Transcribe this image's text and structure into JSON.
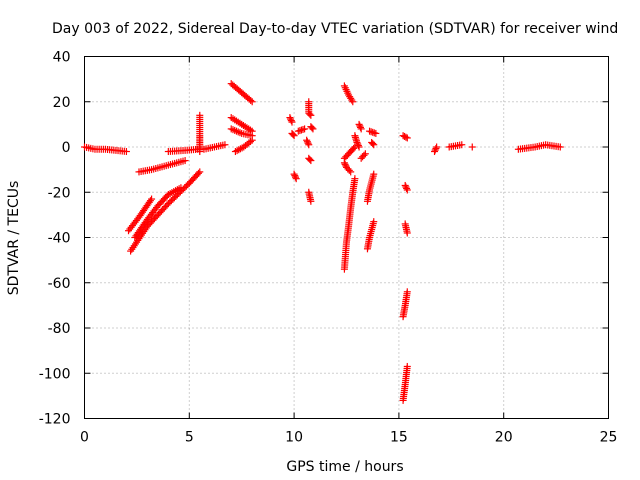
{
  "colors": {
    "points": "#ff0000",
    "background": "#ffffff",
    "frame": "#000000",
    "grid": "#a0a0a0"
  },
  "chart_data": {
    "type": "scatter",
    "title": "Day 003 of 2022, Sidereal Day-to-day VTEC variation (SDTVAR) for receiver wind",
    "xlabel": "GPS time / hours",
    "ylabel": "SDTVAR / TECUs",
    "xlim": [
      0,
      25
    ],
    "ylim": [
      -120,
      40
    ],
    "xticks": [
      0,
      5,
      10,
      15,
      20,
      25
    ],
    "yticks": [
      -120,
      -100,
      -80,
      -60,
      -40,
      -20,
      0,
      20,
      40
    ],
    "grid": true,
    "marker": "plus",
    "series": [
      {
        "name": "SDTVAR",
        "segments": [
          [
            [
              0.0,
              0
            ],
            [
              0.5,
              -1
            ],
            [
              1.0,
              -1
            ],
            [
              1.5,
              -1.5
            ],
            [
              2.0,
              -2
            ]
          ],
          [
            [
              2.6,
              -11
            ],
            [
              3.2,
              -10
            ],
            [
              4.0,
              -8
            ],
            [
              4.8,
              -6
            ]
          ],
          [
            [
              2.1,
              -37
            ],
            [
              2.6,
              -31
            ],
            [
              3.2,
              -23
            ]
          ],
          [
            [
              2.2,
              -46
            ],
            [
              3.0,
              -35
            ],
            [
              4.0,
              -25
            ],
            [
              5.0,
              -16
            ],
            [
              5.5,
              -11
            ]
          ],
          [
            [
              2.4,
              -40
            ],
            [
              3.0,
              -32
            ],
            [
              3.5,
              -26
            ],
            [
              4.0,
              -21
            ],
            [
              4.6,
              -18
            ]
          ],
          [
            [
              4.0,
              -2
            ],
            [
              4.8,
              -1.5
            ],
            [
              5.4,
              -1
            ]
          ],
          [
            [
              5.5,
              14
            ],
            [
              5.5,
              5
            ],
            [
              5.5,
              2
            ],
            [
              5.5,
              -2
            ]
          ],
          [
            [
              5.7,
              -1
            ],
            [
              6.2,
              0
            ],
            [
              6.7,
              1
            ]
          ],
          [
            [
              7.0,
              28
            ],
            [
              7.5,
              24
            ],
            [
              8.0,
              20
            ]
          ],
          [
            [
              7.0,
              13
            ],
            [
              7.5,
              10
            ],
            [
              8.0,
              7
            ]
          ],
          [
            [
              7.0,
              8
            ],
            [
              7.5,
              6
            ],
            [
              8.0,
              5
            ]
          ],
          [
            [
              7.2,
              -2
            ],
            [
              7.6,
              0
            ],
            [
              8.0,
              3
            ]
          ],
          [
            [
              9.8,
              13
            ],
            [
              9.9,
              11
            ]
          ],
          [
            [
              9.9,
              6
            ],
            [
              10.0,
              5
            ]
          ],
          [
            [
              10.0,
              -12
            ],
            [
              10.1,
              -14
            ]
          ],
          [
            [
              10.2,
              7
            ],
            [
              10.5,
              8
            ]
          ],
          [
            [
              10.7,
              20
            ],
            [
              10.7,
              15
            ],
            [
              10.8,
              14
            ]
          ],
          [
            [
              10.8,
              9
            ],
            [
              10.9,
              8
            ]
          ],
          [
            [
              10.6,
              3
            ],
            [
              10.7,
              1
            ]
          ],
          [
            [
              10.7,
              -5
            ],
            [
              10.8,
              -6
            ]
          ],
          [
            [
              10.7,
              -20
            ],
            [
              10.8,
              -24
            ]
          ],
          [
            [
              12.4,
              27
            ],
            [
              12.6,
              23
            ],
            [
              12.8,
              20
            ]
          ],
          [
            [
              12.4,
              -5
            ],
            [
              12.6,
              -3
            ],
            [
              12.9,
              0
            ]
          ],
          [
            [
              12.4,
              -7
            ],
            [
              12.5,
              -9
            ],
            [
              12.7,
              -11
            ]
          ],
          [
            [
              12.4,
              -54
            ],
            [
              12.5,
              -42
            ],
            [
              12.6,
              -35
            ],
            [
              12.7,
              -27
            ],
            [
              12.8,
              -20
            ],
            [
              12.9,
              -14
            ]
          ],
          [
            [
              12.9,
              5
            ],
            [
              13.0,
              2
            ],
            [
              13.1,
              0
            ]
          ],
          [
            [
              13.1,
              10
            ],
            [
              13.2,
              8
            ]
          ],
          [
            [
              13.2,
              -5
            ],
            [
              13.4,
              -3
            ]
          ],
          [
            [
              13.5,
              -24
            ],
            [
              13.6,
              -19
            ],
            [
              13.8,
              -12
            ]
          ],
          [
            [
              13.5,
              -45
            ],
            [
              13.6,
              -40
            ],
            [
              13.8,
              -33
            ]
          ],
          [
            [
              13.6,
              7
            ],
            [
              13.9,
              6
            ]
          ],
          [
            [
              13.7,
              2
            ],
            [
              13.8,
              1
            ]
          ],
          [
            [
              15.2,
              5
            ],
            [
              15.4,
              4
            ]
          ],
          [
            [
              15.3,
              -17
            ],
            [
              15.4,
              -19
            ]
          ],
          [
            [
              15.3,
              -34
            ],
            [
              15.4,
              -38
            ]
          ],
          [
            [
              15.2,
              -75
            ],
            [
              15.3,
              -70
            ],
            [
              15.4,
              -64
            ]
          ],
          [
            [
              15.2,
              -112
            ],
            [
              15.3,
              -105
            ],
            [
              15.4,
              -97
            ]
          ],
          [
            [
              16.7,
              -2
            ],
            [
              16.8,
              0
            ]
          ],
          [
            [
              17.4,
              0
            ],
            [
              18.0,
              1
            ]
          ],
          [
            [
              18.5,
              0
            ]
          ],
          [
            [
              20.7,
              -1
            ],
            [
              21.5,
              0
            ],
            [
              22.0,
              1
            ],
            [
              22.7,
              0
            ]
          ]
        ]
      }
    ]
  }
}
